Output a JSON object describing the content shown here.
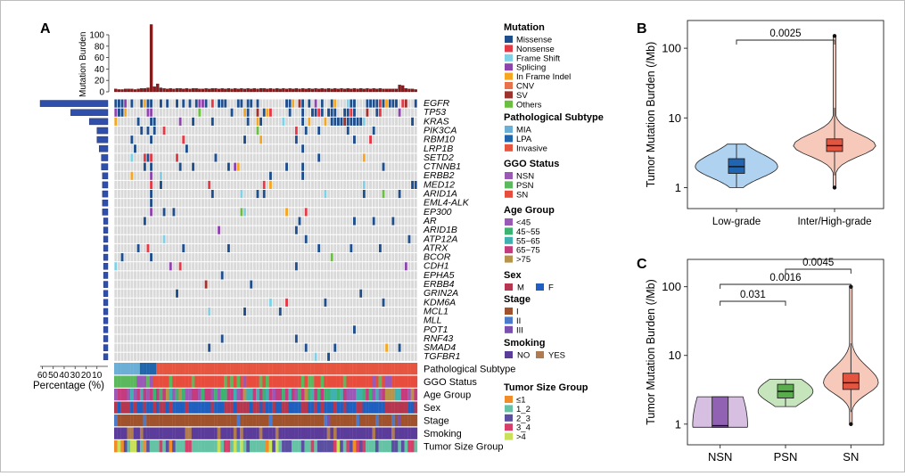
{
  "panels": {
    "a": "A",
    "b": "B",
    "c": "C"
  },
  "colors": {
    "grid": "#d9d9d9",
    "bar": "#8b1a1a",
    "pct_bar": "#2f4faa",
    "violin_low": "#aed2f0",
    "box_low": "#2065b2",
    "violin_sn": "#f6c9bb",
    "box_sn": "#e4543f",
    "violin_nsn": "#d7bfe2",
    "box_nsn": "#9161b3",
    "violin_psn": "#c6e5bc",
    "box_psn": "#5aad4c"
  },
  "oncoprint": {
    "burden_axis_label": "Mutation Burden",
    "burden_ticks": [
      "100",
      "80",
      "60",
      "40",
      "20",
      "0"
    ],
    "burden_max": 100,
    "burden_values": [
      5,
      4,
      4,
      5,
      5,
      5,
      4,
      5,
      6,
      6,
      7,
      118,
      9,
      14,
      7,
      6,
      5,
      6,
      5,
      6,
      6,
      5,
      6,
      5,
      6,
      6,
      5,
      5,
      6,
      5,
      6,
      6,
      5,
      6,
      5,
      6,
      5,
      6,
      5,
      6,
      5,
      6,
      5,
      6,
      5,
      6,
      6,
      5,
      6,
      5,
      6,
      5,
      6,
      5,
      6,
      5,
      6,
      5,
      6,
      5,
      6,
      5,
      6,
      5,
      6,
      5,
      6,
      5,
      6,
      5,
      6,
      5,
      6,
      5,
      6,
      5,
      6,
      5,
      6,
      5,
      6,
      5,
      6,
      5,
      5,
      5,
      5,
      5,
      12,
      11,
      6,
      5,
      5,
      4
    ],
    "genes": [
      "EGFR",
      "TP53",
      "KRAS",
      "PIK3CA",
      "RBM10",
      "LRP1B",
      "SETD2",
      "CTNNB1",
      "ERBB2",
      "MED12",
      "ARID1A",
      "EML4-ALK",
      "EP300",
      "AR",
      "ARID1B",
      "ATP12A",
      "ATRX",
      "BCOR",
      "CDH1",
      "EPHA5",
      "ERBB4",
      "GRIN2A",
      "KDM6A",
      "MCL1",
      "MLL",
      "POT1",
      "RNF43",
      "SMAD4",
      "TGFBR1"
    ],
    "percentages": [
      62,
      34,
      17,
      10,
      10,
      8,
      6,
      6,
      5,
      5,
      5,
      5,
      5,
      4,
      4,
      4,
      4,
      4,
      4,
      4,
      4,
      4,
      4,
      4,
      4,
      4,
      4,
      4,
      4
    ],
    "pct_axis_title": "Percentage (%)",
    "pct_ticks": [
      "60",
      "50",
      "40",
      "30",
      "20",
      "10"
    ],
    "clinical_tracks": [
      "Pathological Subtype",
      "GGO Status",
      "Age Group",
      "Sex",
      "Stage",
      "Smoking",
      "Tumor Size Group"
    ]
  },
  "legends": [
    {
      "title": "Mutation",
      "items": [
        {
          "label": "Missense",
          "color": "#1f4e8c"
        },
        {
          "label": "Nonsense",
          "color": "#e63946"
        },
        {
          "label": "Frame Shift",
          "color": "#7fd1e8"
        },
        {
          "label": "Splicing",
          "color": "#8e44ad"
        },
        {
          "label": "In Frame Indel",
          "color": "#f5a623"
        },
        {
          "label": "CNV",
          "color": "#e8734a"
        },
        {
          "label": "SV",
          "color": "#a0322c"
        },
        {
          "label": "Others",
          "color": "#6abf40"
        }
      ]
    },
    {
      "title": "Pathological Subtype",
      "items": [
        {
          "label": "MIA",
          "color": "#6baed6"
        },
        {
          "label": "LPA",
          "color": "#2166ac"
        },
        {
          "label": "Invasive",
          "color": "#e6553f"
        }
      ]
    },
    {
      "title": "GGO Status",
      "items": [
        {
          "label": "NSN",
          "color": "#9b59b6"
        },
        {
          "label": "PSN",
          "color": "#5cb85c"
        },
        {
          "label": "SN",
          "color": "#e74c3c"
        }
      ]
    },
    {
      "title": "Age Group",
      "items": [
        {
          "label": "<45",
          "color": "#9b59b6"
        },
        {
          "label": "45~55",
          "color": "#3cb371"
        },
        {
          "label": "55~65",
          "color": "#40b0b0"
        },
        {
          "label": "65~75",
          "color": "#c43c7e"
        },
        {
          "label": ">75",
          "color": "#b8944a"
        }
      ]
    },
    {
      "title": "Sex",
      "items": [
        {
          "label": "M",
          "color": "#b5364e"
        },
        {
          "label": "F",
          "color": "#1f5fbf"
        }
      ]
    },
    {
      "title": "Stage",
      "items": [
        {
          "label": "I",
          "color": "#a0522d"
        },
        {
          "label": "II",
          "color": "#4a7ac9"
        },
        {
          "label": "III",
          "color": "#7a4fb0"
        }
      ]
    },
    {
      "title": "Smoking",
      "items": [
        {
          "label": "NO",
          "color": "#5b3c9a"
        },
        {
          "label": "YES",
          "color": "#b07b4f"
        }
      ]
    },
    {
      "title": "Tumor Size Group",
      "items": [
        {
          "label": "≤1",
          "color": "#f08c2a"
        },
        {
          "label": "1_2",
          "color": "#66c2a5"
        },
        {
          "label": "2_3",
          "color": "#5a4fa0"
        },
        {
          "label": "3_4",
          "color": "#d63f6a"
        },
        {
          "label": ">4",
          "color": "#c9e05a"
        }
      ]
    }
  ],
  "chart_data": [
    {
      "type": "violin",
      "panel": "B",
      "ylabel": "Tumor Mutation Burden (/Mb)",
      "yscale": "log",
      "yticks": [
        "1",
        "10",
        "100"
      ],
      "ylim": [
        0.5,
        250
      ],
      "categories": [
        "Low-grade",
        "Inter/High-grade"
      ],
      "boxes": [
        {
          "q1": 1.6,
          "median": 2.0,
          "q3": 2.6,
          "whisker_low": 1.0,
          "whisker_high": 4.2,
          "outliers": []
        },
        {
          "q1": 3.3,
          "median": 4.0,
          "q3": 5.0,
          "whisker_low": 1.5,
          "whisker_high": 14,
          "outliers": [
            1.0,
            150
          ]
        }
      ],
      "comparisons": [
        {
          "pair": [
            "Low-grade",
            "Inter/High-grade"
          ],
          "p": "0.0025"
        }
      ]
    },
    {
      "type": "violin",
      "panel": "C",
      "ylabel": "Tumor Mutation Burden (/Mb)",
      "yscale": "log",
      "yticks": [
        "1",
        "10",
        "100"
      ],
      "ylim": [
        0.5,
        250
      ],
      "categories": [
        "NSN",
        "PSN",
        "SN"
      ],
      "boxes": [
        {
          "q1": 0.9,
          "median": 0.95,
          "q3": 2.5,
          "whisker_low": 0.9,
          "whisker_high": 2.5,
          "outliers": []
        },
        {
          "q1": 2.4,
          "median": 3.0,
          "q3": 3.8,
          "whisker_low": 1.8,
          "whisker_high": 4.5,
          "outliers": []
        },
        {
          "q1": 3.2,
          "median": 4.0,
          "q3": 5.5,
          "whisker_low": 1.5,
          "whisker_high": 15,
          "outliers": [
            1.0,
            100
          ]
        }
      ],
      "comparisons": [
        {
          "pair": [
            "NSN",
            "PSN"
          ],
          "p": "0.031"
        },
        {
          "pair": [
            "NSN",
            "SN"
          ],
          "p": "0.0016"
        },
        {
          "pair": [
            "PSN",
            "SN"
          ],
          "p": "0.0045"
        }
      ]
    }
  ]
}
